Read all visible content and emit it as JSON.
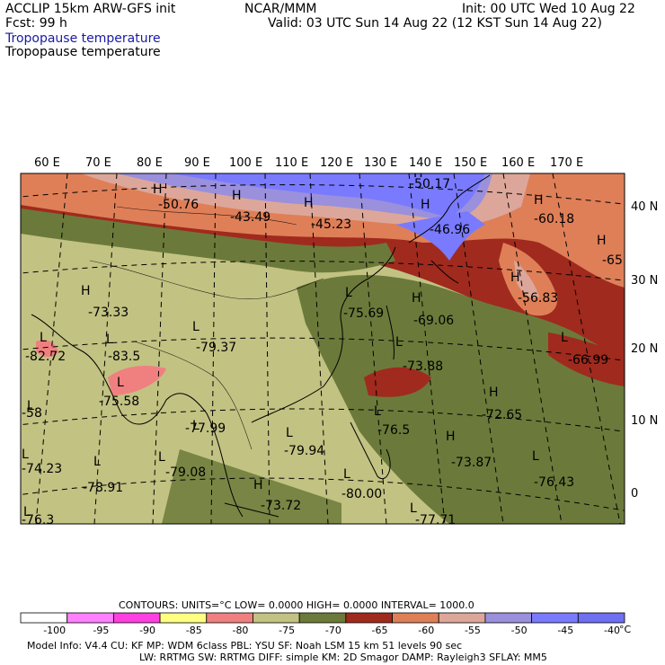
{
  "header": {
    "model": "ACCLIP 15km ARW-GFS init",
    "fcst": "Fcst:   99 h",
    "center": "NCAR/MMM",
    "init": "Init: 00 UTC Wed 10 Aug 22",
    "valid": "Valid: 03 UTC Sun 14 Aug 22 (12 KST Sun 14 Aug 22)",
    "field_title_1": "Tropopause temperature",
    "field_title_2": "Tropopause temperature"
  },
  "map": {
    "lon_labels": [
      "60 E",
      "70 E",
      "80 E",
      "90 E",
      "100 E",
      "110 E",
      "120 E",
      "130 E",
      "140 E",
      "150 E",
      "160 E",
      "170 E"
    ],
    "lat_labels": [
      "40 N",
      "30 N",
      "20 N",
      "10 N",
      "0"
    ],
    "extrema": [
      {
        "kind": "H",
        "value": "-50.76"
      },
      {
        "kind": "H",
        "value": "-43.49"
      },
      {
        "kind": "H",
        "value": "-45.23"
      },
      {
        "kind": "H",
        "value": "-50.17"
      },
      {
        "kind": "H",
        "value": "-46.96"
      },
      {
        "kind": "H",
        "value": "-60.18"
      },
      {
        "kind": "H",
        "value": "-65"
      },
      {
        "kind": "H",
        "value": "-73.33"
      },
      {
        "kind": "L",
        "value": "-82.72"
      },
      {
        "kind": "L",
        "value": "-83.5"
      },
      {
        "kind": "L",
        "value": "-79.37"
      },
      {
        "kind": "L",
        "value": "-75.58"
      },
      {
        "kind": "L",
        "value": "-75.69"
      },
      {
        "kind": "H",
        "value": "-69.06"
      },
      {
        "kind": "H",
        "value": "-56.83"
      },
      {
        "kind": "L",
        "value": "-66.99"
      },
      {
        "kind": "L",
        "value": "-73.88"
      },
      {
        "kind": "H",
        "value": "-72.65"
      },
      {
        "kind": "L",
        "value": "-58"
      },
      {
        "kind": "L",
        "value": "-77.99"
      },
      {
        "kind": "L",
        "value": "-76.5"
      },
      {
        "kind": "L",
        "value": "-79.94"
      },
      {
        "kind": "H",
        "value": "-73.87"
      },
      {
        "kind": "L",
        "value": "-74.23"
      },
      {
        "kind": "L",
        "value": "-78.91"
      },
      {
        "kind": "L",
        "value": "-79.08"
      },
      {
        "kind": "L",
        "value": "-76.43"
      },
      {
        "kind": "H",
        "value": "-73.72"
      },
      {
        "kind": "L",
        "value": "-80.00"
      },
      {
        "kind": "L",
        "value": "-76.3"
      },
      {
        "kind": "L",
        "value": "-77.71"
      }
    ]
  },
  "legend": {
    "contours_line": "CONTOURS:  UNITS=°C  LOW=  0.0000       HIGH=  0.0000       INTERVAL=   1000.0",
    "unit": "°C",
    "bins": [
      {
        "color": "#ffffff",
        "label": "-100"
      },
      {
        "color": "#ff80ff",
        "label": "-95"
      },
      {
        "color": "#ff40e0",
        "label": "-90"
      },
      {
        "color": "#ffff80",
        "label": "-85"
      },
      {
        "color": "#f08080",
        "label": "-80"
      },
      {
        "color": "#c2c283",
        "label": "-75"
      },
      {
        "color": "#6b7a3a",
        "label": "-70"
      },
      {
        "color": "#a02a1e",
        "label": "-65"
      },
      {
        "color": "#df7f58",
        "label": "-60"
      },
      {
        "color": "#dca79a",
        "label": "-55"
      },
      {
        "color": "#9a90dc",
        "label": "-50"
      },
      {
        "color": "#7a7aff",
        "label": "-45"
      },
      {
        "color": "#6f6ff2",
        "label": "-40"
      }
    ]
  },
  "footer": {
    "line1": "Model Info: V4.4        CU: KF        MP: WDM 6class   PBL: YSU         SF: Noah LSM      15 km    51 levels    90 sec",
    "line2": "LW: RRTMG    SW: RRTMG   DIFF: simple KM: 2D Smagor DAMP: Rayleigh3  SFLAY: MM5"
  },
  "colors": {
    "olive": "#6b7a3a",
    "khaki": "#c2c283",
    "brick": "#a02a1e",
    "salmon": "#df7f58",
    "pink_tan": "#dca79a",
    "lavender": "#9a90dc",
    "blue": "#7a7aff",
    "low_pink": "#f08080"
  }
}
